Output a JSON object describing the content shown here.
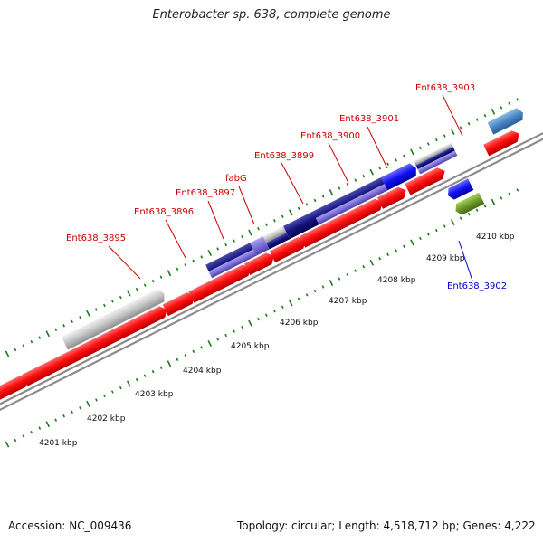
{
  "title": "Enterobacter sp. 638, complete genome",
  "footer": {
    "accession": "Accession: NC_009436",
    "summary": "Topology: circular; Length: 4,518,712 bp; Genes: 4,222"
  },
  "colors": {
    "backbone": "#8c8c8c",
    "tick": "#1c7a1c",
    "red_label": "#cc0000",
    "blue_label": "#0000cc"
  },
  "scale_labels": [
    {
      "text": "4201 kbp"
    },
    {
      "text": "4202 kbp"
    },
    {
      "text": "4203 kbp"
    },
    {
      "text": "4204 kbp"
    },
    {
      "text": "4205 kbp"
    },
    {
      "text": "4206 kbp"
    },
    {
      "text": "4207 kbp"
    },
    {
      "text": "4208 kbp"
    },
    {
      "text": "4209 kbp"
    },
    {
      "text": "4210 kbp"
    }
  ],
  "gene_labels": [
    {
      "text": "Ent638_3895",
      "color": "#cc0000"
    },
    {
      "text": "Ent638_3896",
      "color": "#cc0000"
    },
    {
      "text": "Ent638_3897",
      "color": "#cc0000"
    },
    {
      "text": "fabG",
      "color": "#cc0000"
    },
    {
      "text": "Ent638_3899",
      "color": "#cc0000"
    },
    {
      "text": "Ent638_3900",
      "color": "#cc0000"
    },
    {
      "text": "Ent638_3901",
      "color": "#cc0000"
    },
    {
      "text": "Ent638_3903",
      "color": "#cc0000"
    },
    {
      "text": "Ent638_3902",
      "color": "#0000cc"
    }
  ]
}
